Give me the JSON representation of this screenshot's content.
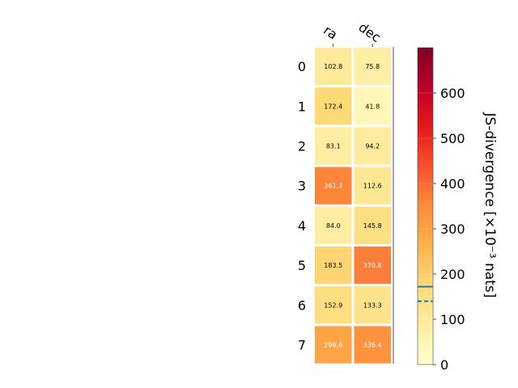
{
  "chart_data": {
    "type": "heatmap",
    "columns": [
      "ra",
      "dec"
    ],
    "rows": [
      "0",
      "1",
      "2",
      "3",
      "4",
      "5",
      "6",
      "7"
    ],
    "values": [
      [
        102.8,
        75.8
      ],
      [
        172.4,
        41.8
      ],
      [
        83.1,
        94.2
      ],
      [
        361.3,
        112.6
      ],
      [
        84.0,
        145.8
      ],
      [
        183.5,
        370.8
      ],
      [
        152.9,
        133.3
      ],
      [
        296.6,
        336.4
      ]
    ],
    "value_labels": [
      [
        "102.8",
        "75.8"
      ],
      [
        "172.4",
        "41.8"
      ],
      [
        "83.1",
        "94.2"
      ],
      [
        "361.3",
        "112.6"
      ],
      [
        "84.0",
        "145.8"
      ],
      [
        "183.5",
        "370.8"
      ],
      [
        "152.9",
        "133.3"
      ],
      [
        "296.6",
        "336.4"
      ]
    ],
    "colorbar": {
      "label": "JS-divergence [×10⁻³ nats]",
      "range": [
        0,
        700
      ],
      "ticks": [
        0,
        100,
        200,
        300,
        400,
        500,
        600
      ],
      "tick_labels": [
        "0",
        "100",
        "200",
        "300",
        "400",
        "500",
        "600"
      ],
      "colormap": "YlOrRd",
      "solid_line_value": 172,
      "dashed_line_value": 140,
      "line_color": "#1f77b4"
    }
  }
}
